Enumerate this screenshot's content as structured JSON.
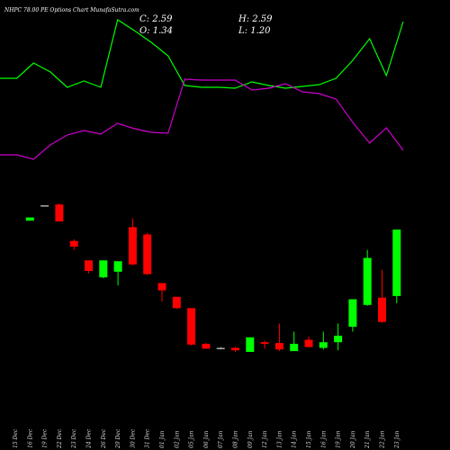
{
  "header": {
    "title": "NHPC 78.00 PE Options Chart MunafaSutra.com",
    "ohlc": {
      "c": "C: 2.59",
      "h": "H: 2.59",
      "o": "O: 1.34",
      "l": "L: 1.20"
    }
  },
  "colors": {
    "background": "#000000",
    "up": "#00ff00",
    "down": "#ff0000",
    "neutral": "#aaaaaa",
    "line_green": "#00ff00",
    "line_magenta": "#cc00cc"
  },
  "chart_data": [
    {
      "type": "line",
      "title": "",
      "series": [
        {
          "color": "#00ff00",
          "values": [
            87,
            87,
            70,
            80,
            97,
            90,
            97,
            22,
            34,
            47,
            62,
            95,
            97,
            97,
            98,
            91,
            95,
            98,
            96,
            94,
            87,
            67,
            43,
            84,
            24
          ]
        },
        {
          "color": "#cc00cc",
          "values": [
            172,
            172,
            177,
            161,
            150,
            145,
            149,
            137,
            143,
            147,
            148,
            88,
            89,
            89,
            89,
            100,
            98,
            93,
            102,
            104,
            110,
            136,
            159,
            142,
            167
          ]
        }
      ],
      "ylim": [
        0,
        300
      ]
    },
    {
      "type": "candlestick",
      "title": "",
      "categories": [
        "15 Dec",
        "16 Dec",
        "19 Dec",
        "22 Dec",
        "23 Dec",
        "24 Dec",
        "26 Dec",
        "29 Dec",
        "30 Dec",
        "31 Dec",
        "01 Jan",
        "02 Jan",
        "05 Jan",
        "06 Jan",
        "07 Jan",
        "08 Jan",
        "09 Jan",
        "12 Jan",
        "13 Jan",
        "14 Jan",
        "15 Jan",
        "16 Jan",
        "19 Jan",
        "20 Jan",
        "21 Jan",
        "22 Jan",
        "23 Jan"
      ],
      "candles": [
        {
          "o": 0,
          "h": 0,
          "l": 0,
          "c": 0,
          "dir": "none"
        },
        {
          "o": 222,
          "h": 225,
          "l": 222,
          "c": 226,
          "dir": "up"
        },
        {
          "o": 241,
          "h": 241,
          "l": 241,
          "c": 241,
          "dir": "flat"
        },
        {
          "o": 242,
          "h": 243,
          "l": 222,
          "c": 221,
          "dir": "down"
        },
        {
          "o": 197,
          "h": 199,
          "l": 186,
          "c": 190,
          "dir": "down"
        },
        {
          "o": 173,
          "h": 173,
          "l": 157,
          "c": 160,
          "dir": "down"
        },
        {
          "o": 152,
          "h": 173,
          "l": 151,
          "c": 173,
          "dir": "up"
        },
        {
          "o": 159,
          "h": 171,
          "l": 142,
          "c": 172,
          "dir": "up"
        },
        {
          "o": 214,
          "h": 225,
          "l": 167,
          "c": 168,
          "dir": "down"
        },
        {
          "o": 205,
          "h": 207,
          "l": 155,
          "c": 156,
          "dir": "down"
        },
        {
          "o": 145,
          "h": 145,
          "l": 122,
          "c": 136,
          "dir": "down"
        },
        {
          "o": 128,
          "h": 128,
          "l": 113,
          "c": 114,
          "dir": "down"
        },
        {
          "o": 114,
          "h": 114,
          "l": 68,
          "c": 69,
          "dir": "down"
        },
        {
          "o": 70,
          "h": 71,
          "l": 64,
          "c": 64,
          "dir": "down"
        },
        {
          "o": 64,
          "h": 66,
          "l": 63,
          "c": 65,
          "dir": "flat"
        },
        {
          "o": 65,
          "h": 66,
          "l": 60,
          "c": 62,
          "dir": "down"
        },
        {
          "o": 60,
          "h": 78,
          "l": 60,
          "c": 78,
          "dir": "up"
        },
        {
          "o": 72,
          "h": 74,
          "l": 64,
          "c": 70,
          "dir": "down"
        },
        {
          "o": 71,
          "h": 95,
          "l": 61,
          "c": 63,
          "dir": "down"
        },
        {
          "o": 61,
          "h": 85,
          "l": 61,
          "c": 70,
          "dir": "up"
        },
        {
          "o": 75,
          "h": 79,
          "l": 66,
          "c": 66,
          "dir": "down"
        },
        {
          "o": 65,
          "h": 85,
          "l": 63,
          "c": 72,
          "dir": "up"
        },
        {
          "o": 72,
          "h": 95,
          "l": 62,
          "c": 80,
          "dir": "up"
        },
        {
          "o": 91,
          "h": 125,
          "l": 85,
          "c": 125,
          "dir": "up"
        },
        {
          "o": 118,
          "h": 186,
          "l": 117,
          "c": 176,
          "dir": "up"
        },
        {
          "o": 127,
          "h": 161,
          "l": 96,
          "c": 97,
          "dir": "down"
        },
        {
          "o": 129,
          "h": 211,
          "l": 120,
          "c": 211,
          "dir": "up"
        }
      ],
      "ylim": [
        0,
        250
      ]
    }
  ]
}
